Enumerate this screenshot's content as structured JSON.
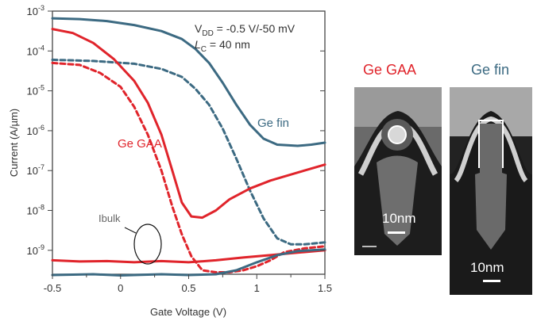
{
  "chart_data": {
    "type": "line",
    "xlabel": "Gate Voltage (V)",
    "ylabel": "Current (A/µm)",
    "xlim": [
      -0.5,
      1.5
    ],
    "ylim_log10": [
      -9.6,
      -3
    ],
    "xticks": [
      "-0.5",
      "0",
      "0.5",
      "1",
      "1.5"
    ],
    "yticks": [
      {
        "base": "10",
        "exp": "-3",
        "value": -3
      },
      {
        "base": "10",
        "exp": "-4",
        "value": -4
      },
      {
        "base": "10",
        "exp": "-5",
        "value": -5
      },
      {
        "base": "10",
        "exp": "-6",
        "value": -6
      },
      {
        "base": "10",
        "exp": "-7",
        "value": -7
      },
      {
        "base": "10",
        "exp": "-8",
        "value": -8
      },
      {
        "base": "10",
        "exp": "-9",
        "value": -9
      }
    ],
    "annotation_vdd": {
      "prefix": "V",
      "sub": "DD",
      "text": " = -0.5 V/-50 mV"
    },
    "annotation_lc": {
      "prefix": "L",
      "sub": "C",
      "text": " = 40 nm"
    },
    "label_fin": "Ge fin",
    "label_gaa": "Ge GAA",
    "label_ibulk": "Ibulk",
    "colors": {
      "gaa": "#e0242b",
      "fin": "#3c6a82"
    },
    "series": [
      {
        "group": "Ge fin",
        "style": "solid",
        "color": "#3c6a82",
        "points": [
          [
            -0.5,
            -3.18
          ],
          [
            -0.3,
            -3.2
          ],
          [
            -0.1,
            -3.25
          ],
          [
            0.1,
            -3.35
          ],
          [
            0.3,
            -3.5
          ],
          [
            0.45,
            -3.7
          ],
          [
            0.55,
            -3.95
          ],
          [
            0.65,
            -4.3
          ],
          [
            0.75,
            -4.8
          ],
          [
            0.85,
            -5.35
          ],
          [
            0.95,
            -5.85
          ],
          [
            1.05,
            -6.2
          ],
          [
            1.15,
            -6.35
          ],
          [
            1.3,
            -6.38
          ],
          [
            1.4,
            -6.35
          ],
          [
            1.5,
            -6.3
          ]
        ]
      },
      {
        "group": "Ge fin",
        "style": "dashed",
        "color": "#3c6a82",
        "points": [
          [
            -0.5,
            -4.22
          ],
          [
            -0.2,
            -4.25
          ],
          [
            0.1,
            -4.32
          ],
          [
            0.3,
            -4.45
          ],
          [
            0.45,
            -4.65
          ],
          [
            0.55,
            -4.95
          ],
          [
            0.65,
            -5.35
          ],
          [
            0.75,
            -5.95
          ],
          [
            0.85,
            -6.7
          ],
          [
            0.95,
            -7.5
          ],
          [
            1.05,
            -8.2
          ],
          [
            1.15,
            -8.7
          ],
          [
            1.25,
            -8.85
          ],
          [
            1.35,
            -8.85
          ],
          [
            1.5,
            -8.8
          ]
        ]
      },
      {
        "group": "Ge GAA",
        "style": "solid",
        "color": "#e0242b",
        "points": [
          [
            -0.5,
            -3.45
          ],
          [
            -0.35,
            -3.55
          ],
          [
            -0.2,
            -3.8
          ],
          [
            -0.05,
            -4.2
          ],
          [
            0.1,
            -4.75
          ],
          [
            0.2,
            -5.3
          ],
          [
            0.3,
            -6.1
          ],
          [
            0.38,
            -7.0
          ],
          [
            0.45,
            -7.8
          ],
          [
            0.52,
            -8.15
          ],
          [
            0.6,
            -8.18
          ],
          [
            0.7,
            -8.0
          ],
          [
            0.8,
            -7.72
          ],
          [
            0.95,
            -7.45
          ],
          [
            1.1,
            -7.25
          ],
          [
            1.3,
            -7.05
          ],
          [
            1.5,
            -6.85
          ]
        ]
      },
      {
        "group": "Ge GAA",
        "style": "dashed",
        "color": "#e0242b",
        "points": [
          [
            -0.5,
            -4.3
          ],
          [
            -0.3,
            -4.35
          ],
          [
            -0.15,
            -4.55
          ],
          [
            0.0,
            -4.9
          ],
          [
            0.1,
            -5.4
          ],
          [
            0.2,
            -6.1
          ],
          [
            0.3,
            -7.0
          ],
          [
            0.38,
            -7.9
          ],
          [
            0.45,
            -8.6
          ],
          [
            0.52,
            -9.15
          ],
          [
            0.6,
            -9.5
          ],
          [
            0.7,
            -9.55
          ],
          [
            0.8,
            -9.55
          ],
          [
            0.9,
            -9.5
          ],
          [
            1.0,
            -9.4
          ],
          [
            1.1,
            -9.25
          ],
          [
            1.2,
            -9.05
          ],
          [
            1.35,
            -8.95
          ],
          [
            1.5,
            -8.9
          ]
        ]
      },
      {
        "group": "Ge GAA",
        "style": "solid",
        "color": "#e0242b",
        "note": "Ibulk",
        "points": [
          [
            -0.5,
            -9.25
          ],
          [
            -0.3,
            -9.28
          ],
          [
            -0.1,
            -9.27
          ],
          [
            0.1,
            -9.3
          ],
          [
            0.3,
            -9.27
          ],
          [
            0.5,
            -9.3
          ],
          [
            0.7,
            -9.25
          ],
          [
            0.9,
            -9.18
          ],
          [
            1.1,
            -9.12
          ],
          [
            1.3,
            -9.06
          ],
          [
            1.5,
            -9.0
          ]
        ]
      },
      {
        "group": "Ge fin",
        "style": "solid",
        "color": "#3c6a82",
        "note": "Ibulk",
        "points": [
          [
            -0.5,
            -9.62
          ],
          [
            -0.2,
            -9.6
          ],
          [
            0.0,
            -9.63
          ],
          [
            0.3,
            -9.6
          ],
          [
            0.5,
            -9.62
          ],
          [
            0.7,
            -9.6
          ],
          [
            0.85,
            -9.5
          ],
          [
            1.0,
            -9.3
          ],
          [
            1.15,
            -9.12
          ],
          [
            1.3,
            -9.02
          ],
          [
            1.5,
            -8.98
          ]
        ]
      }
    ]
  },
  "panels": {
    "gaa_title": "Ge GAA",
    "fin_title": "Ge fin",
    "gaa_scale": "10nm",
    "fin_scale": "10nm"
  }
}
